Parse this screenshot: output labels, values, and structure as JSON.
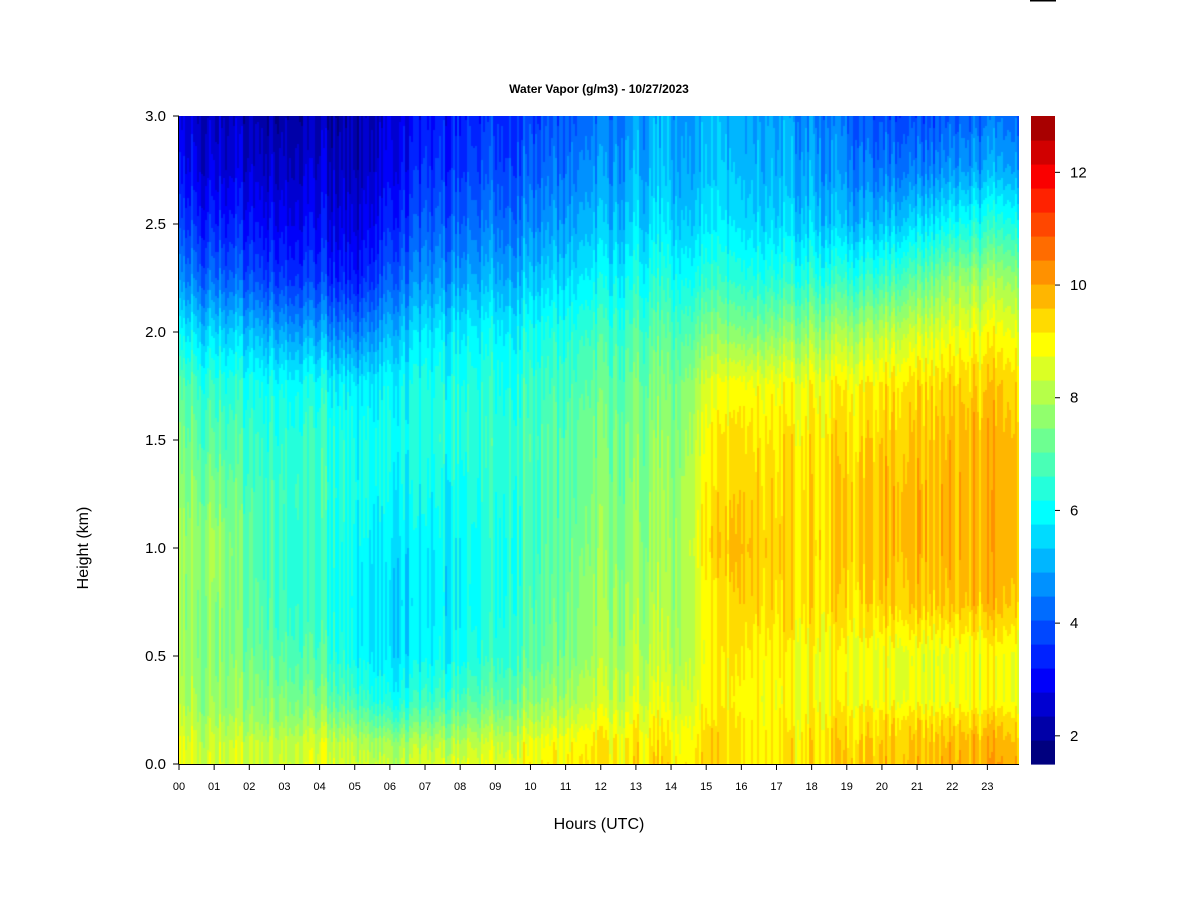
{
  "chart_data": {
    "type": "heatmap",
    "title": "Water Vapor (g/m3) - 10/27/2023",
    "xlabel": "Hours (UTC)",
    "ylabel": "Height (km)",
    "x_ticks": [
      "00",
      "01",
      "02",
      "03",
      "04",
      "05",
      "06",
      "07",
      "08",
      "09",
      "10",
      "11",
      "12",
      "13",
      "14",
      "15",
      "16",
      "17",
      "18",
      "19",
      "20",
      "21",
      "22",
      "23"
    ],
    "y_ticks": [
      "0.0",
      "0.5",
      "1.0",
      "1.5",
      "2.0",
      "2.5",
      "3.0"
    ],
    "xlim": [
      0,
      23.9
    ],
    "ylim": [
      0,
      3.0
    ],
    "colorbar": {
      "ticks": [
        "2",
        "4",
        "6",
        "8",
        "10",
        "12"
      ],
      "range": [
        1.5,
        13.0
      ],
      "step": 0.5,
      "colors": [
        "#00007F",
        "#0000A8",
        "#0000D1",
        "#0000FA",
        "#0022FF",
        "#0047FF",
        "#006CFF",
        "#0091FF",
        "#00B6FF",
        "#00DBFF",
        "#00FFFF",
        "#24FFDB",
        "#49FFB6",
        "#6DFF91",
        "#91FF6D",
        "#B6FF49",
        "#DBFF24",
        "#FFFF00",
        "#FFDB00",
        "#FFB600",
        "#FF9100",
        "#FF6C00",
        "#FF4700",
        "#FF2200",
        "#FA0000",
        "#D10000",
        "#A80000"
      ]
    },
    "profile_heights_km": [
      0.0,
      0.1,
      0.2,
      0.3,
      0.5,
      0.75,
      1.0,
      1.25,
      1.5,
      1.75,
      2.0,
      2.25,
      2.5,
      2.75,
      3.0
    ],
    "profiles": [
      {
        "hour": 0,
        "values": [
          9.8,
          9.7,
          9.3,
          9.0,
          8.8,
          8.6,
          8.7,
          8.5,
          8.2,
          7.8,
          6.5,
          5.0,
          4.0,
          3.2,
          2.8
        ]
      },
      {
        "hour": 1,
        "values": [
          9.7,
          9.6,
          9.2,
          8.9,
          8.7,
          8.8,
          9.1,
          8.6,
          8.0,
          7.5,
          6.3,
          4.8,
          3.8,
          3.0,
          2.6
        ]
      },
      {
        "hour": 2,
        "values": [
          9.6,
          9.6,
          9.0,
          8.8,
          8.4,
          8.2,
          8.0,
          7.9,
          7.6,
          7.2,
          6.0,
          4.5,
          3.6,
          2.9,
          2.5
        ]
      },
      {
        "hour": 3,
        "values": [
          9.6,
          9.5,
          8.9,
          8.6,
          8.0,
          7.6,
          7.5,
          7.6,
          7.4,
          7.0,
          5.6,
          4.1,
          3.3,
          2.7,
          2.3
        ]
      },
      {
        "hour": 4,
        "values": [
          9.6,
          9.5,
          8.8,
          8.2,
          7.6,
          7.2,
          7.2,
          7.4,
          7.3,
          6.8,
          5.3,
          3.9,
          3.1,
          2.6,
          2.2
        ]
      },
      {
        "hour": 5,
        "values": [
          9.7,
          9.4,
          8.6,
          7.8,
          7.0,
          6.8,
          7.0,
          7.2,
          7.1,
          6.7,
          5.1,
          3.7,
          3.0,
          2.6,
          2.4
        ]
      },
      {
        "hour": 6,
        "values": [
          9.4,
          9.0,
          7.9,
          7.0,
          6.4,
          6.3,
          6.5,
          6.8,
          7.0,
          6.8,
          5.8,
          4.6,
          3.8,
          3.2,
          2.9
        ]
      },
      {
        "hour": 7,
        "values": [
          9.6,
          9.1,
          8.2,
          7.4,
          6.6,
          6.4,
          6.5,
          6.8,
          7.1,
          7.0,
          6.3,
          5.2,
          4.4,
          3.8,
          3.4
        ]
      },
      {
        "hour": 8,
        "values": [
          9.8,
          9.3,
          8.5,
          7.8,
          7.0,
          6.7,
          6.8,
          7.0,
          7.3,
          7.2,
          6.6,
          5.5,
          4.7,
          4.1,
          3.7
        ]
      },
      {
        "hour": 9,
        "values": [
          10.0,
          9.6,
          8.9,
          8.2,
          7.5,
          7.2,
          7.2,
          7.4,
          7.5,
          7.3,
          6.8,
          5.8,
          5.0,
          4.4,
          4.0
        ]
      },
      {
        "hour": 10,
        "values": [
          10.3,
          10.0,
          9.3,
          8.7,
          8.0,
          7.8,
          7.7,
          7.7,
          7.8,
          7.5,
          7.0,
          6.0,
          5.2,
          4.6,
          4.2
        ]
      },
      {
        "hour": 11,
        "values": [
          10.4,
          10.2,
          9.6,
          9.0,
          8.5,
          8.3,
          8.2,
          8.0,
          8.0,
          7.7,
          7.2,
          6.3,
          5.5,
          4.9,
          4.5
        ]
      },
      {
        "hour": 12,
        "values": [
          10.5,
          10.4,
          9.9,
          9.4,
          9.0,
          8.8,
          8.6,
          8.5,
          8.3,
          8.0,
          7.5,
          6.6,
          5.8,
          5.2,
          4.8
        ]
      },
      {
        "hour": 13,
        "values": [
          10.5,
          10.4,
          10.0,
          9.6,
          9.2,
          8.9,
          8.7,
          8.6,
          8.4,
          8.2,
          7.7,
          6.9,
          6.1,
          5.6,
          5.3
        ]
      },
      {
        "hour": 14,
        "values": [
          10.6,
          10.4,
          10.1,
          9.7,
          9.3,
          9.0,
          8.9,
          8.8,
          8.6,
          8.4,
          7.9,
          7.1,
          6.3,
          5.8,
          5.6
        ]
      },
      {
        "hour": 15,
        "values": [
          10.7,
          10.6,
          10.4,
          10.1,
          10.0,
          10.1,
          10.4,
          10.3,
          10.0,
          9.6,
          8.4,
          7.2,
          6.3,
          5.8,
          5.6
        ]
      },
      {
        "hour": 16,
        "values": [
          10.6,
          10.6,
          10.5,
          10.4,
          10.6,
          11.0,
          11.2,
          11.0,
          10.8,
          10.3,
          8.6,
          7.3,
          6.4,
          5.9,
          5.7
        ]
      },
      {
        "hour": 17,
        "values": [
          10.5,
          10.5,
          10.4,
          10.3,
          10.4,
          10.8,
          10.9,
          10.8,
          10.6,
          10.2,
          8.7,
          7.3,
          6.3,
          5.8,
          5.6
        ]
      },
      {
        "hour": 18,
        "values": [
          10.6,
          10.6,
          10.4,
          10.2,
          10.2,
          10.6,
          10.7,
          10.6,
          10.5,
          10.1,
          8.8,
          7.3,
          6.1,
          5.5,
          5.2
        ]
      },
      {
        "hour": 19,
        "values": [
          10.8,
          10.7,
          10.5,
          10.1,
          10.0,
          10.6,
          10.8,
          10.8,
          10.6,
          10.2,
          8.9,
          7.2,
          5.7,
          5.0,
          4.6
        ]
      },
      {
        "hour": 20,
        "values": [
          10.9,
          10.8,
          10.6,
          10.0,
          9.9,
          10.8,
          11.0,
          11.0,
          10.8,
          10.4,
          9.2,
          7.4,
          5.8,
          4.8,
          4.2
        ]
      },
      {
        "hour": 21,
        "values": [
          11.1,
          11.0,
          10.7,
          10.0,
          9.9,
          11.0,
          11.2,
          11.2,
          11.0,
          10.7,
          9.6,
          8.0,
          6.3,
          5.0,
          4.3
        ]
      },
      {
        "hour": 22,
        "values": [
          11.4,
          11.2,
          10.8,
          10.1,
          10.0,
          11.1,
          11.3,
          11.3,
          11.2,
          10.9,
          10.0,
          8.8,
          6.9,
          5.4,
          4.6
        ]
      },
      {
        "hour": 23,
        "values": [
          11.4,
          11.2,
          10.8,
          10.1,
          10.1,
          11.1,
          11.3,
          11.3,
          11.2,
          10.9,
          10.1,
          8.9,
          7.2,
          5.6,
          4.8
        ]
      }
    ]
  }
}
